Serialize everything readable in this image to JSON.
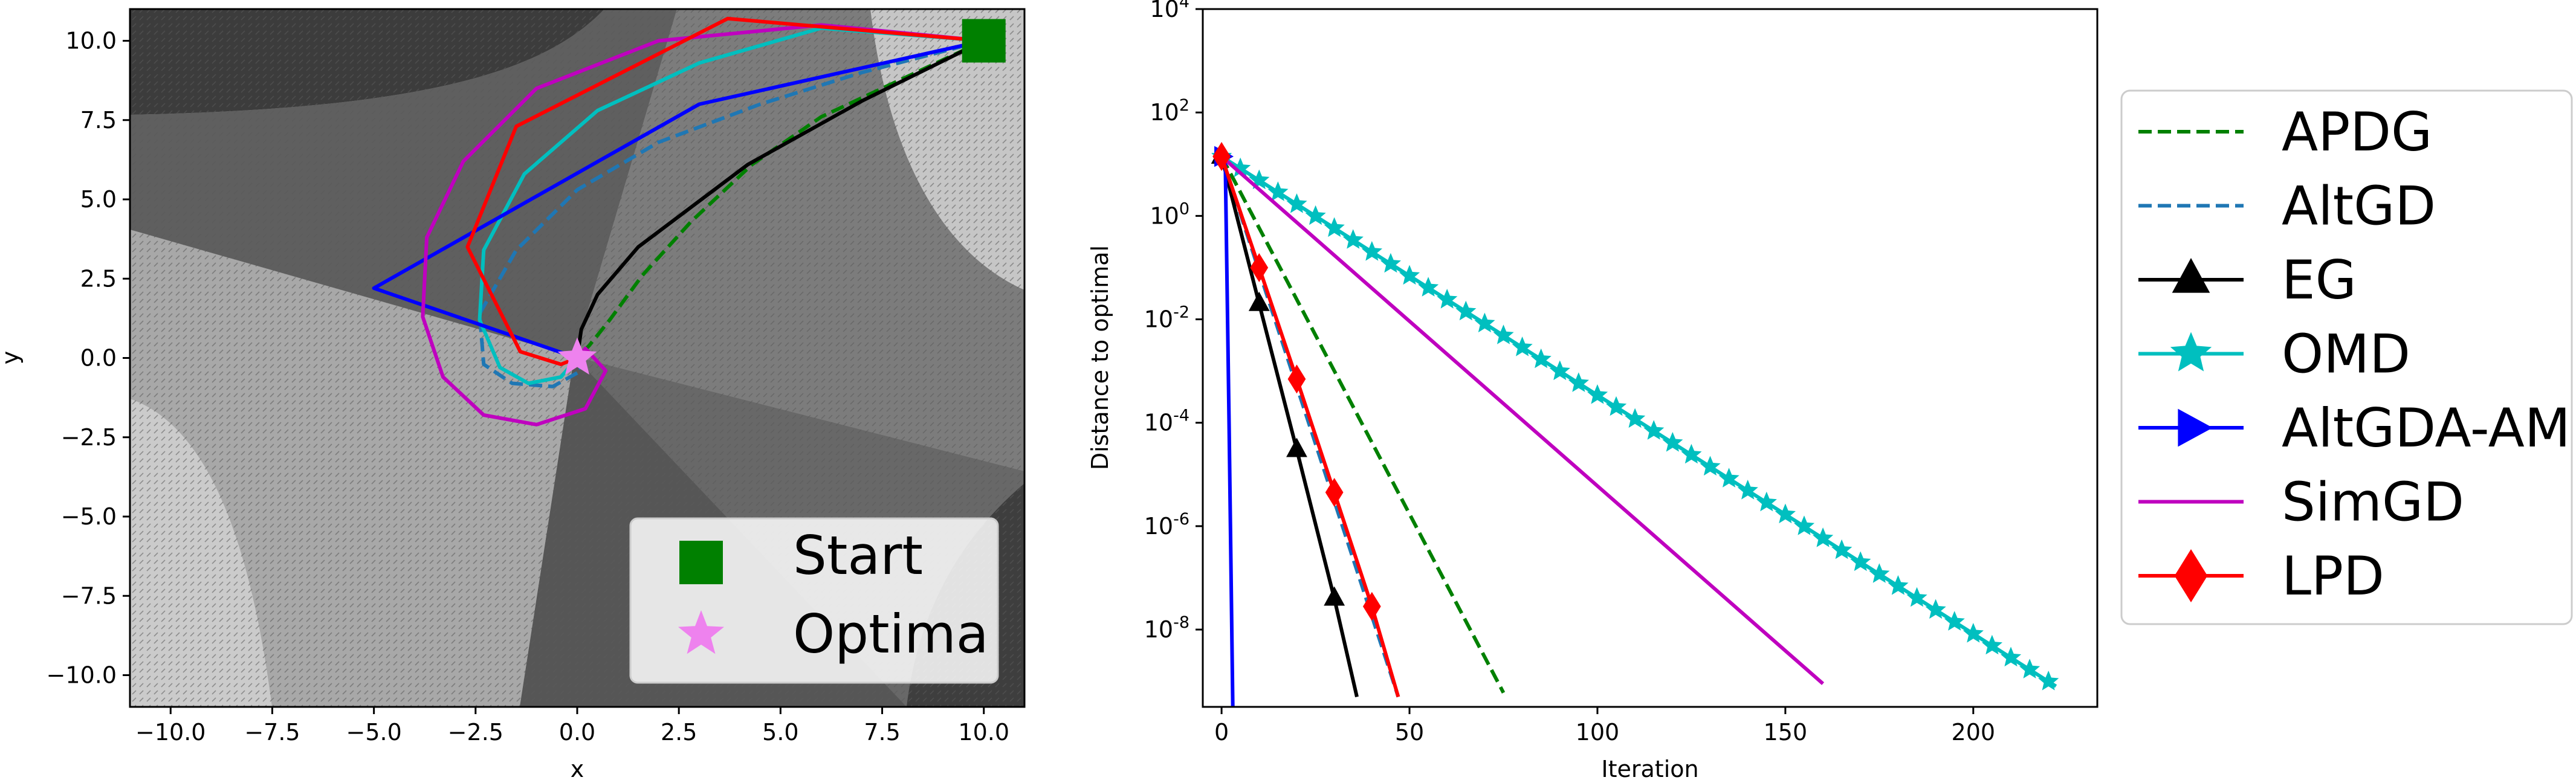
{
  "chart_data": [
    {
      "type": "line",
      "subtype": "trajectory-over-vector-field",
      "xlabel": "x",
      "ylabel": "y",
      "xlim": [
        -11,
        11
      ],
      "ylim": [
        -11,
        11
      ],
      "xticks": [
        -10,
        -7.5,
        -5,
        -2.5,
        0,
        2.5,
        5,
        7.5,
        10
      ],
      "xtick_labels": [
        "−10.0",
        "−7.5",
        "−5.0",
        "−2.5",
        "0.0",
        "2.5",
        "5.0",
        "7.5",
        "10.0"
      ],
      "yticks": [
        10,
        7.5,
        5,
        2.5,
        0,
        -2.5,
        -5,
        -7.5,
        -10
      ],
      "ytick_labels": [
        "10.0",
        "7.5",
        "5.0",
        "2.5",
        "0.0",
        "−2.5",
        "−5.0",
        "−7.5",
        "−10.0"
      ],
      "grid": false,
      "legend_position": "lower-right",
      "legend": [
        {
          "label": "Start",
          "marker": "square",
          "color": "#008000"
        },
        {
          "label": "Optima",
          "marker": "star",
          "color": "#ee82ee"
        }
      ],
      "start_point": {
        "x": 10,
        "y": 10
      },
      "optimum_point": {
        "x": 0,
        "y": 0
      },
      "series": [
        {
          "color": "#008000",
          "style": "dashed",
          "x": [
            10,
            8,
            6,
            4.3,
            2.8,
            1.6,
            0.8,
            0.3,
            0
          ],
          "y": [
            10,
            8.8,
            7.6,
            6.1,
            4.3,
            2.6,
            1.2,
            0.4,
            0
          ]
        },
        {
          "color": "#1f77b4",
          "style": "dashed",
          "x": [
            10,
            7,
            4.5,
            2,
            0,
            -1.5,
            -2.4,
            -2.3,
            -1.6,
            -0.6,
            0.1,
            0
          ],
          "y": [
            10,
            9,
            8,
            6.8,
            5.3,
            3.4,
            1.4,
            -0.2,
            -0.8,
            -0.9,
            -0.4,
            0
          ]
        },
        {
          "color": "#000000",
          "style": "solid",
          "x": [
            10,
            7,
            4.2,
            1.5,
            0.5,
            0.1,
            0
          ],
          "y": [
            10,
            8.1,
            6.1,
            3.5,
            2,
            0.9,
            0
          ]
        },
        {
          "color": "#00bfbf",
          "style": "solid",
          "x": [
            10,
            6,
            3,
            0.5,
            -1.3,
            -2.3,
            -2.4,
            -1.9,
            -1.2,
            -0.4,
            0
          ],
          "y": [
            10,
            10.4,
            9.3,
            7.8,
            5.8,
            3.4,
            1.2,
            -0.3,
            -0.8,
            -0.6,
            0
          ]
        },
        {
          "color": "#0000ff",
          "style": "solid",
          "x": [
            10,
            3,
            -5,
            0
          ],
          "y": [
            10,
            8,
            2.2,
            0
          ]
        },
        {
          "color": "#bf00bf",
          "style": "solid",
          "x": [
            10,
            6,
            2,
            -1,
            -2.8,
            -3.7,
            -3.8,
            -3.3,
            -2.3,
            -1,
            0.2,
            0.7,
            0.2,
            0
          ],
          "y": [
            10,
            10.5,
            10,
            8.5,
            6.2,
            3.8,
            1.3,
            -0.6,
            -1.8,
            -2.1,
            -1.6,
            -0.4,
            0.3,
            0
          ]
        },
        {
          "color": "#ff0000",
          "style": "solid",
          "x": [
            10,
            3.7,
            -1.5,
            -2.7,
            -1.4,
            -0.4,
            0
          ],
          "y": [
            10,
            10.7,
            7.3,
            3.5,
            0.2,
            -0.2,
            0
          ]
        }
      ]
    },
    {
      "type": "line",
      "xlabel": "Iteration",
      "ylabel": "Distance to optimal",
      "yscale": "log",
      "xlim": [
        -5,
        233
      ],
      "ylim": [
        3.2e-10,
        10000
      ],
      "xticks": [
        0,
        50,
        100,
        150,
        200
      ],
      "xtick_labels": [
        "0",
        "50",
        "100",
        "150",
        "200"
      ],
      "yticks": [
        {
          "value": 10000,
          "base": "10",
          "exp": "4"
        },
        {
          "value": 100,
          "base": "10",
          "exp": "2"
        },
        {
          "value": 1,
          "base": "10",
          "exp": "0"
        },
        {
          "value": 0.01,
          "base": "10",
          "exp": "-2"
        },
        {
          "value": 0.0001,
          "base": "10",
          "exp": "-4"
        },
        {
          "value": 1e-06,
          "base": "10",
          "exp": "-6"
        },
        {
          "value": 1e-08,
          "base": "10",
          "exp": "-8"
        }
      ],
      "grid": false,
      "legend_position": "outside-right",
      "series": [
        {
          "name": "APDG",
          "color": "#008000",
          "style": "dashed",
          "marker": "none",
          "x": [
            0,
            75
          ],
          "y": [
            14.1,
            6e-10
          ]
        },
        {
          "name": "AltGD",
          "color": "#1f77b4",
          "style": "dashed",
          "marker": "none",
          "x": [
            0,
            47
          ],
          "y": [
            14.1,
            5e-10
          ]
        },
        {
          "name": "EG",
          "color": "#000000",
          "style": "solid",
          "marker": "triangle-up",
          "marker_every": 10,
          "x": [
            0,
            10,
            20,
            30,
            36
          ],
          "y": [
            14.1,
            0.02,
            3e-05,
            4e-08,
            5e-10
          ]
        },
        {
          "name": "OMD",
          "color": "#00bfbf",
          "style": "solid",
          "marker": "star",
          "marker_every": 5,
          "x": [
            0,
            222
          ],
          "y": [
            14.1,
            8e-10
          ]
        },
        {
          "name": "AltGDA-AM",
          "color": "#0000ff",
          "style": "solid",
          "marker": "triangle-right",
          "marker_every": 0,
          "x": [
            0,
            1,
            2,
            3
          ],
          "y": [
            14.1,
            10,
            0.0001,
            3e-10
          ]
        },
        {
          "name": "SimGD",
          "color": "#bf00bf",
          "style": "solid",
          "marker": "none",
          "x": [
            0,
            160
          ],
          "y": [
            14.1,
            9e-10
          ]
        },
        {
          "name": "LPD",
          "color": "#ff0000",
          "style": "solid",
          "marker": "diamond",
          "marker_every": 10,
          "x": [
            0,
            10,
            20,
            30,
            40,
            47
          ],
          "y": [
            14.1,
            0.1,
            0.0007,
            4.5e-06,
            2.8e-08,
            5e-10
          ]
        }
      ]
    }
  ]
}
